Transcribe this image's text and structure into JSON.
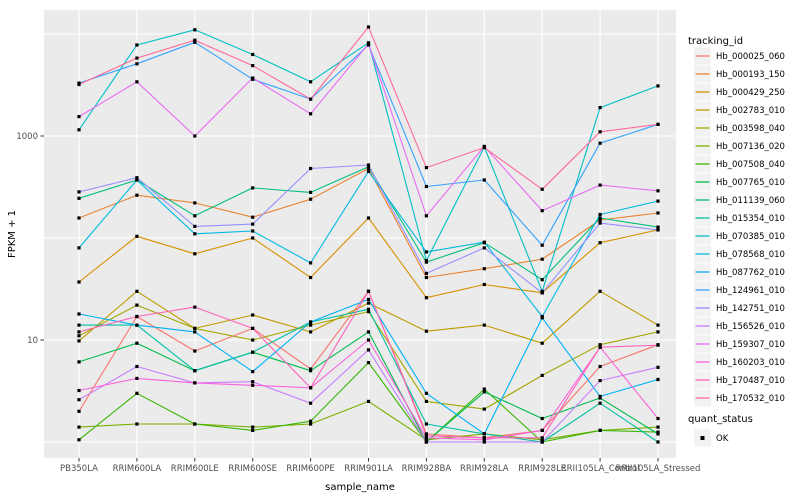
{
  "chart_data": {
    "type": "line",
    "title": "",
    "xlabel": "sample_name",
    "ylabel": "FPKM + 1",
    "yscale": "log10",
    "ylim": [
      0.8,
      17000
    ],
    "ytick_values": [
      1000,
      10
    ],
    "ytick_labels": [
      "1000",
      "10"
    ],
    "grid_decades": [
      1,
      10,
      100,
      1000,
      10000
    ],
    "grid": "white major gridlines on gray panel",
    "legend_position": "right",
    "legend_titles": {
      "series": "tracking_id",
      "points": "quant_status"
    },
    "point": {
      "shape": "filled-square",
      "color": "#000000",
      "legend_label": "OK"
    },
    "colors": {
      "panel_bg": "#EBEBEB",
      "grid": "#FFFFFF",
      "tick_text": "#4D4D4D",
      "axis_title": "#000000"
    },
    "categories": [
      "PB350LA",
      "RRIM600LA",
      "RRIM600LE",
      "RRIM600SE",
      "RRIM600PE",
      "RRIM901LA",
      "RRIM928BA",
      "RRIM928LA",
      "RRIM928LE",
      "RRII105LA_Control",
      "RRII105LA_Stressed"
    ],
    "series": [
      {
        "name": "Hb_000025_060",
        "color": "#F8766D",
        "values": [
          2.0,
          17,
          7.8,
          13,
          5.2,
          30,
          1.2,
          1.1,
          1.3,
          5.5,
          9
        ]
      },
      {
        "name": "Hb_000193_150",
        "color": "#EA8331",
        "values": [
          157,
          263,
          221,
          160,
          240,
          480,
          41,
          50,
          62,
          150,
          176
        ]
      },
      {
        "name": "Hb_000429_250",
        "color": "#D89000",
        "values": [
          37,
          104,
          70,
          100,
          41,
          157,
          26,
          35,
          29,
          90,
          120
        ]
      },
      {
        "name": "Hb_002783_010",
        "color": "#C09B00",
        "values": [
          9.8,
          30,
          13,
          17.6,
          12,
          23,
          12.2,
          14,
          9.3,
          30,
          14
        ]
      },
      {
        "name": "Hb_003598_040",
        "color": "#A3A500",
        "values": [
          11,
          22,
          13,
          10,
          14,
          19,
          2.5,
          2.1,
          4.5,
          9,
          12
        ]
      },
      {
        "name": "Hb_007136_020",
        "color": "#7CAE00",
        "values": [
          1.4,
          1.5,
          1.5,
          1.4,
          1.5,
          2.5,
          1.05,
          1.2,
          1.05,
          1.3,
          1.4
        ]
      },
      {
        "name": "Hb_007508_040",
        "color": "#39B600",
        "values": [
          1.05,
          3.0,
          1.5,
          1.3,
          1.6,
          6.0,
          1.0,
          3.3,
          1.0,
          1.3,
          1.25
        ]
      },
      {
        "name": "Hb_007765_010",
        "color": "#00BB4E",
        "values": [
          6.1,
          9.3,
          5.0,
          7.6,
          5.0,
          12,
          1.0,
          3.1,
          1.7,
          2.7,
          1.2
        ]
      },
      {
        "name": "Hb_011139_060",
        "color": "#00BF7D",
        "values": [
          245,
          370,
          165,
          310,
          280,
          500,
          58,
          90,
          39,
          157,
          128
        ]
      },
      {
        "name": "Hb_015354_010",
        "color": "#00C1A3",
        "values": [
          14,
          14,
          5.0,
          7.6,
          15,
          20,
          1.5,
          1.2,
          1.0,
          2.4,
          1.0
        ]
      },
      {
        "name": "Hb_070385_010",
        "color": "#00BFC4",
        "values": [
          1150,
          7800,
          11000,
          6300,
          3400,
          8200,
          60,
          780,
          30,
          1900,
          3100
        ]
      },
      {
        "name": "Hb_078568_010",
        "color": "#00BAE0",
        "values": [
          80,
          370,
          110,
          117,
          57,
          450,
          73,
          91,
          17,
          170,
          230
        ]
      },
      {
        "name": "Hb_087762_010",
        "color": "#00B0F6",
        "values": [
          18,
          14,
          12,
          4.9,
          15,
          25,
          3.0,
          1.2,
          16.5,
          2.8,
          4.1
        ]
      },
      {
        "name": "Hb_124961_010",
        "color": "#35A2FF",
        "values": [
          3300,
          5100,
          8300,
          3600,
          2300,
          7800,
          320,
          370,
          85,
          850,
          1300
        ]
      },
      {
        "name": "Hb_142751_010",
        "color": "#9590FF",
        "values": [
          283,
          390,
          130,
          137,
          480,
          520,
          45,
          80,
          29,
          140,
          120
        ]
      },
      {
        "name": "Hb_156526_010",
        "color": "#C77CFF",
        "values": [
          2.6,
          5.5,
          3.8,
          3.9,
          2.4,
          8.0,
          1.0,
          1.0,
          1.0,
          4.0,
          5.4
        ]
      },
      {
        "name": "Hb_159307_010",
        "color": "#E76BF3",
        "values": [
          1550,
          3400,
          1000,
          3700,
          1650,
          8000,
          165,
          790,
          185,
          330,
          290
        ]
      },
      {
        "name": "Hb_160203_010",
        "color": "#FA62DB",
        "values": [
          3.2,
          4.2,
          3.8,
          3.6,
          3.4,
          10,
          1.1,
          1.05,
          1.3,
          8.5,
          1.7
        ]
      },
      {
        "name": "Hb_170487_010",
        "color": "#FF62BC",
        "values": [
          12,
          17,
          21,
          13,
          3.4,
          30,
          1.15,
          1.1,
          1.1,
          8.5,
          8.9
        ]
      },
      {
        "name": "Hb_170532_010",
        "color": "#FF6A98",
        "values": [
          3200,
          5800,
          8700,
          4900,
          2300,
          11700,
          490,
          770,
          300,
          1100,
          1300
        ]
      }
    ]
  }
}
